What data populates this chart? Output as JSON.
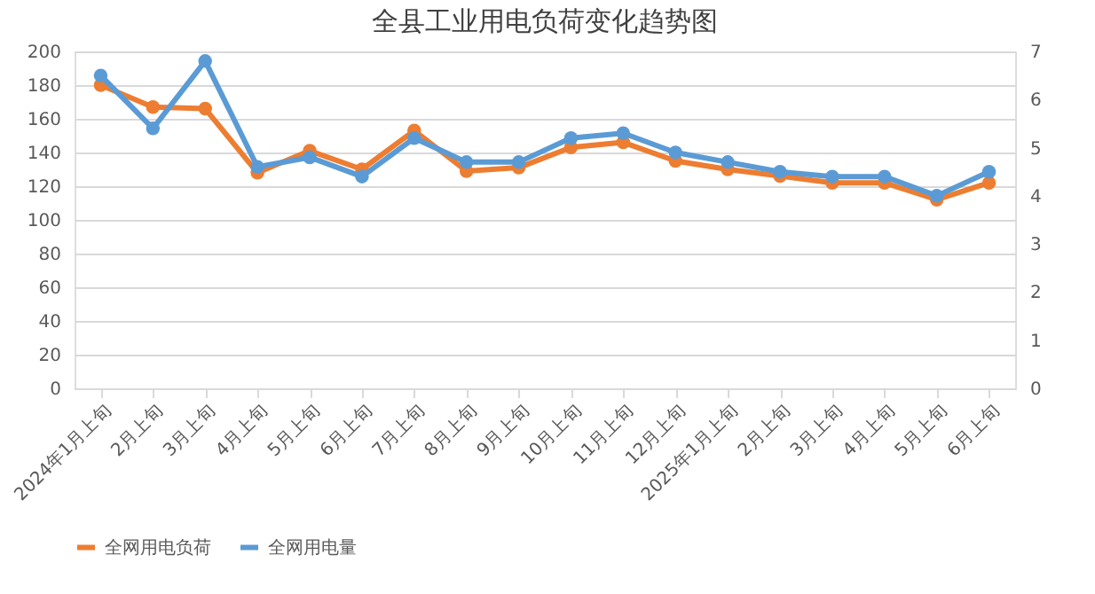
{
  "chart_data": {
    "type": "line",
    "title": "全县工业用电负荷变化趋势图",
    "categories": [
      "2024年1月上旬",
      "2月上旬",
      "3月上旬",
      "4月上旬",
      "5月上旬",
      "6月上旬",
      "7月上旬",
      "8月上旬",
      "9月上旬",
      "10月上旬",
      "11月上旬",
      "12月上旬",
      "2025年1月上旬",
      "2月上旬",
      "3月上旬",
      "4月上旬",
      "5月上旬",
      "6月上旬"
    ],
    "series": [
      {
        "name": "全网用电负荷",
        "color": "#ed7d31",
        "values": [
          180,
          167,
          166,
          128,
          141,
          130,
          153,
          129,
          131,
          143,
          146,
          135,
          130,
          126,
          122,
          122,
          112,
          122
        ]
      },
      {
        "name": "全网用电量",
        "color": "#5b9bd5",
        "axis": "y2",
        "values": [
          6.5,
          5.4,
          6.8,
          4.6,
          4.8,
          4.4,
          5.2,
          4.7,
          4.7,
          5.2,
          5.3,
          4.9,
          4.7,
          4.5,
          4.4,
          4.4,
          4.0,
          4.5
        ]
      }
    ],
    "ylim": [
      0,
      200
    ],
    "yticks": [
      0,
      20,
      40,
      60,
      80,
      100,
      120,
      140,
      160,
      180,
      200
    ],
    "y2lim": [
      0,
      7
    ],
    "y2ticks": [
      0,
      1,
      2,
      3,
      4,
      5,
      6,
      7
    ],
    "grid": "y",
    "legend": "bottom",
    "marker": "circle",
    "line_style": "solid"
  }
}
